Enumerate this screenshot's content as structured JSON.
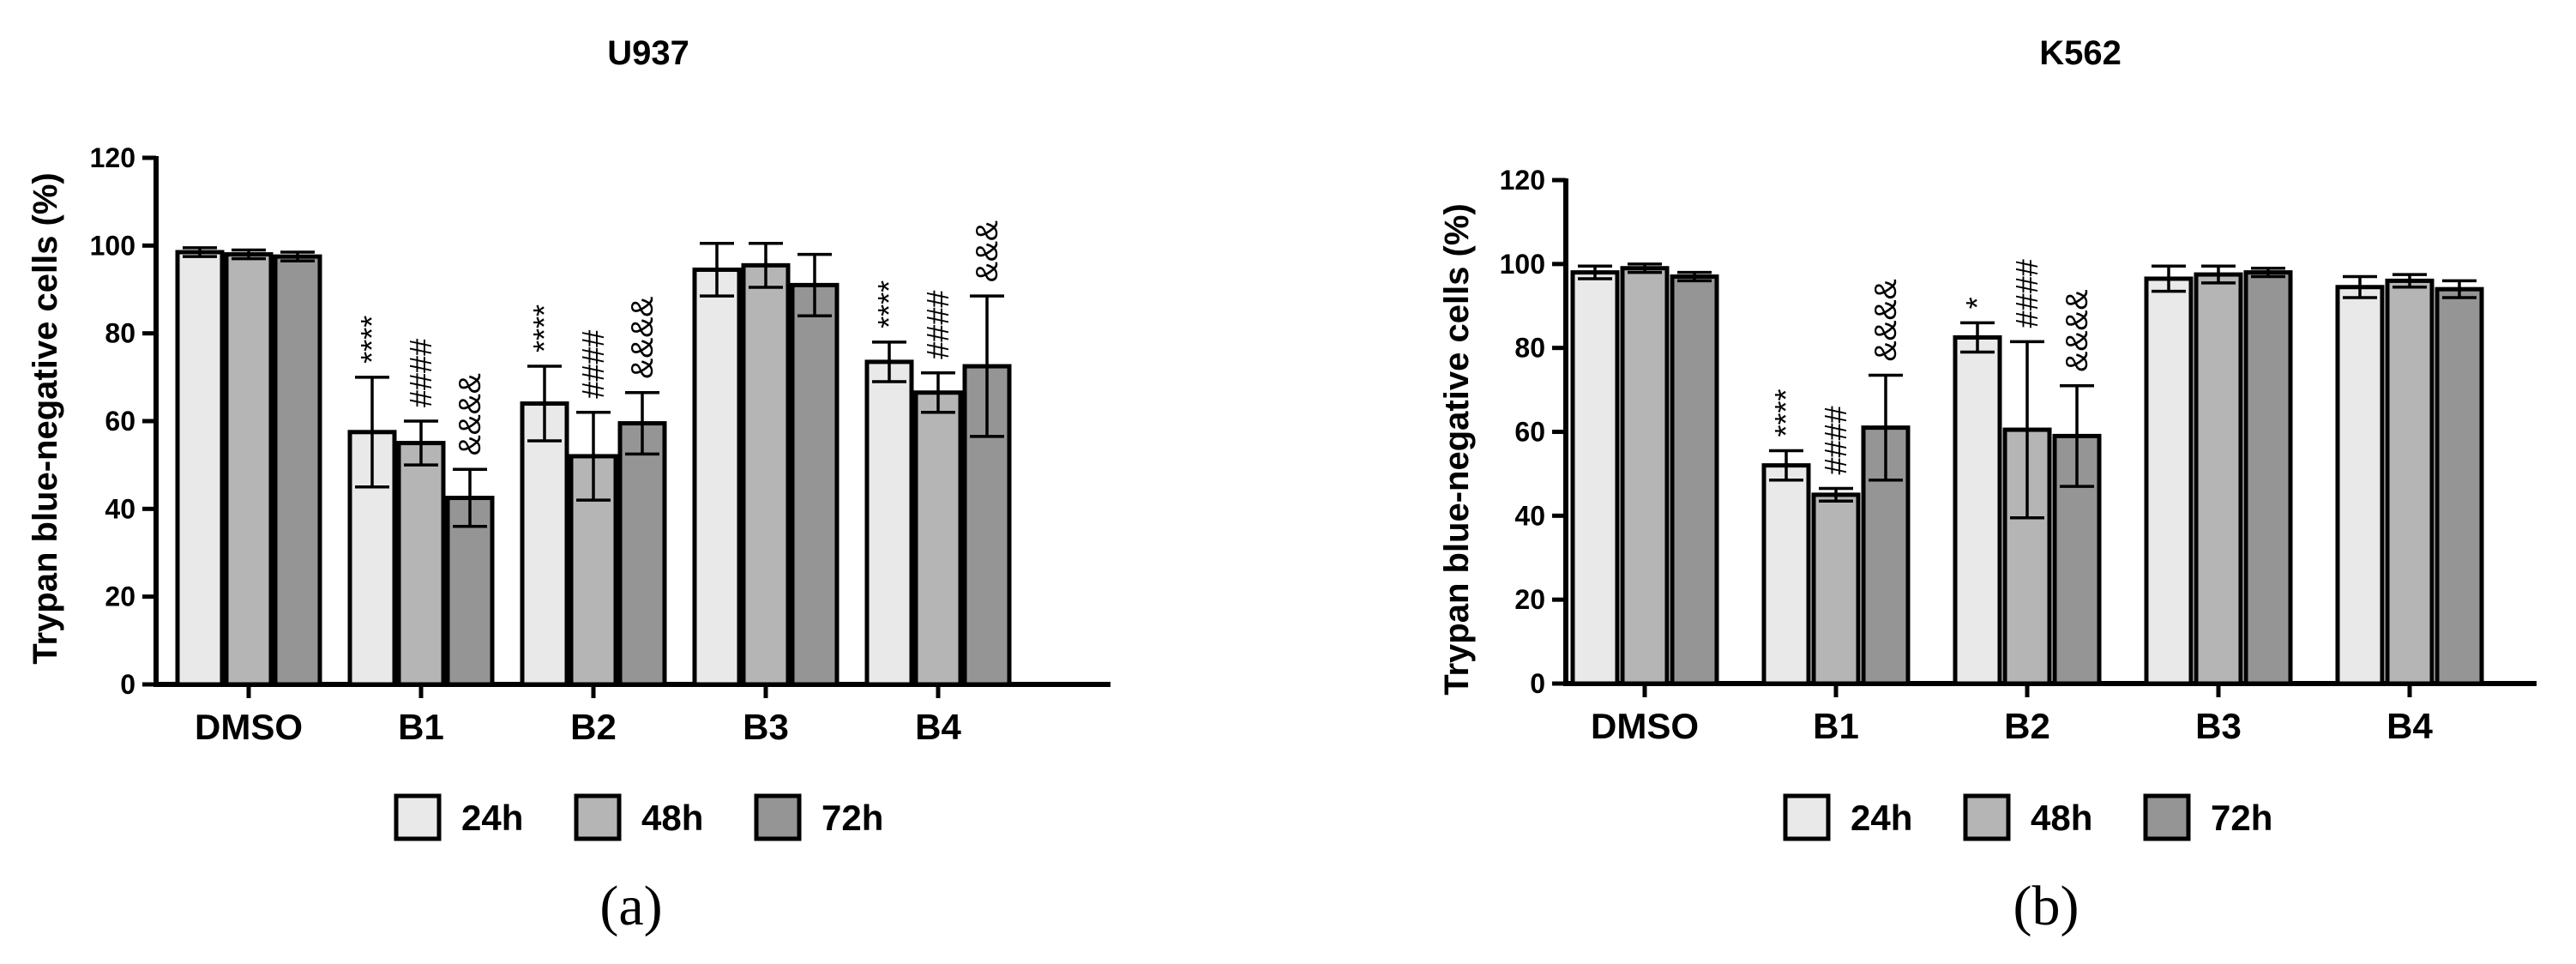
{
  "chart_data": [
    {
      "type": "bar",
      "panel_label": "(a)",
      "title": "U937",
      "xlabel": "",
      "ylabel": "Trypan blue-negative cells (%)",
      "ylim": [
        0,
        120
      ],
      "yticks": [
        0,
        20,
        40,
        60,
        80,
        100,
        120
      ],
      "categories": [
        "DMSO",
        "B1",
        "B2",
        "B3",
        "B4"
      ],
      "series": [
        {
          "name": "24h",
          "values": [
            98.5,
            57.5,
            64,
            94.5,
            73.5
          ],
          "errors": [
            1,
            12.5,
            8.5,
            6,
            4.5
          ],
          "color": "#e9e9e9"
        },
        {
          "name": "48h",
          "values": [
            98,
            55,
            52,
            95.5,
            66.5
          ],
          "errors": [
            1,
            5,
            10,
            5,
            4.5
          ],
          "color": "#b5b5b5"
        },
        {
          "name": "72h",
          "values": [
            97.5,
            42.5,
            59.5,
            91,
            72.5
          ],
          "errors": [
            1,
            6.5,
            7,
            7,
            16
          ],
          "color": "#959595"
        }
      ],
      "annotations": [
        [
          "",
          "****",
          "****",
          "",
          "****"
        ],
        [
          "",
          "####",
          "####",
          "",
          "####"
        ],
        [
          "",
          "&&&&",
          "&&&&",
          "",
          "&&&"
        ]
      ],
      "legend_position": "bottom"
    },
    {
      "type": "bar",
      "panel_label": "(b)",
      "title": "K562",
      "xlabel": "",
      "ylabel": "Trypan blue-negative cells (%)",
      "ylim": [
        0,
        120
      ],
      "yticks": [
        0,
        20,
        40,
        60,
        80,
        100,
        120
      ],
      "categories": [
        "DMSO",
        "B1",
        "B2",
        "B3",
        "B4"
      ],
      "series": [
        {
          "name": "24h",
          "values": [
            98,
            52,
            82.5,
            96.5,
            94.5
          ],
          "errors": [
            1.5,
            3.5,
            3.5,
            3,
            2.5
          ],
          "color": "#e9e9e9"
        },
        {
          "name": "48h",
          "values": [
            99,
            45,
            60.5,
            97.5,
            96
          ],
          "errors": [
            1,
            1.5,
            21,
            2,
            1.5
          ],
          "color": "#b5b5b5"
        },
        {
          "name": "72h",
          "values": [
            97,
            61,
            59,
            98,
            94
          ],
          "errors": [
            1,
            12.5,
            12,
            1,
            2
          ],
          "color": "#959595"
        }
      ],
      "annotations": [
        [
          "",
          "****",
          "*",
          "",
          ""
        ],
        [
          "",
          "####",
          "####",
          "",
          ""
        ],
        [
          "",
          "&&&&",
          "&&&&",
          "",
          ""
        ]
      ],
      "legend_position": "bottom"
    }
  ]
}
